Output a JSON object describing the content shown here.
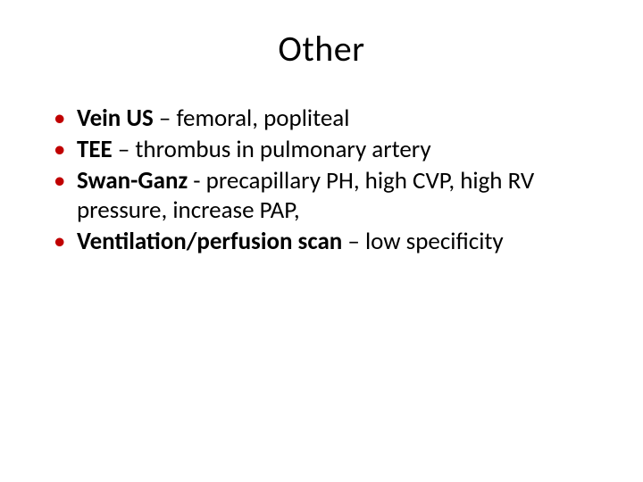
{
  "slide": {
    "title": "Other",
    "title_fontsize": 40,
    "title_color": "#000000",
    "background_color": "#ffffff",
    "bullet_color": "#c00000",
    "body_fontsize": 27,
    "body_color": "#000000",
    "font_family": "Calibri",
    "items": [
      {
        "term": "Vein US",
        "sep": " – ",
        "desc": "femoral, popliteal"
      },
      {
        "term": "TEE",
        "sep": " – ",
        "desc": "thrombus in pulmonary artery"
      },
      {
        "term": "Swan-Ganz",
        "sep": " - ",
        "desc": "precapillary PH, high CVP, high RV pressure, increase PAP,"
      },
      {
        "term": "Ventilation/perfusion scan",
        "sep": " – ",
        "desc": "low specificity"
      }
    ]
  }
}
